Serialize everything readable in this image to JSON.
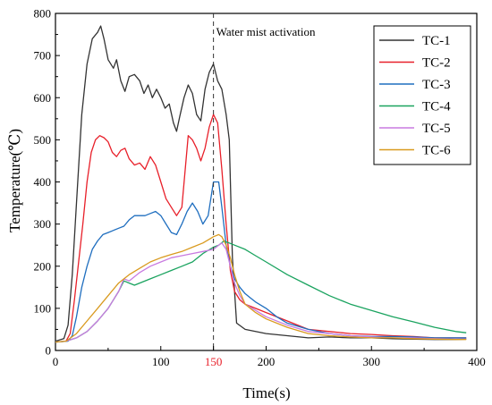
{
  "chart_data": {
    "type": "line",
    "xlabel": "Time(s)",
    "ylabel": "Temperature(℃)",
    "xlim": [
      0,
      400
    ],
    "ylim": [
      0,
      800
    ],
    "xticks": [
      0,
      100,
      200,
      300,
      400
    ],
    "yticks": [
      0,
      100,
      200,
      300,
      400,
      500,
      600,
      700,
      800
    ],
    "highlight_tick": {
      "value": 150,
      "label": "150",
      "color": "#e8202a"
    },
    "grid": false,
    "legend": "top-right",
    "annotation": {
      "x": 150,
      "label": "Water mist activation"
    },
    "series": [
      {
        "name": "TC-1",
        "color": "#333333",
        "x": [
          0,
          8,
          12,
          16,
          20,
          25,
          30,
          35,
          40,
          43,
          46,
          50,
          55,
          58,
          62,
          66,
          70,
          75,
          80,
          84,
          88,
          92,
          96,
          100,
          104,
          108,
          112,
          115,
          118,
          122,
          126,
          130,
          134,
          138,
          142,
          146,
          150,
          154,
          158,
          162,
          165,
          168,
          172,
          180,
          190,
          200,
          220,
          240,
          260,
          280,
          300,
          320,
          340,
          360,
          380,
          390
        ],
        "y": [
          22,
          28,
          60,
          180,
          350,
          560,
          680,
          740,
          755,
          770,
          740,
          690,
          670,
          690,
          640,
          615,
          650,
          655,
          640,
          610,
          630,
          600,
          620,
          600,
          575,
          585,
          540,
          520,
          555,
          600,
          630,
          610,
          560,
          545,
          620,
          660,
          680,
          640,
          620,
          560,
          500,
          220,
          65,
          50,
          45,
          40,
          35,
          30,
          32,
          30,
          30,
          28,
          27,
          26,
          26,
          27
        ]
      },
      {
        "name": "TC-2",
        "color": "#e8202a",
        "x": [
          0,
          10,
          14,
          18,
          22,
          26,
          30,
          34,
          38,
          42,
          46,
          50,
          54,
          58,
          62,
          66,
          70,
          75,
          80,
          85,
          90,
          95,
          100,
          105,
          110,
          115,
          120,
          126,
          130,
          134,
          138,
          142,
          146,
          150,
          154,
          158,
          162,
          166,
          170,
          175,
          180,
          190,
          200,
          220,
          240,
          260,
          280,
          300,
          320,
          340,
          360,
          380,
          390
        ],
        "y": [
          20,
          22,
          40,
          120,
          210,
          300,
          400,
          470,
          500,
          510,
          505,
          495,
          470,
          460,
          475,
          480,
          455,
          440,
          445,
          430,
          460,
          440,
          400,
          360,
          340,
          320,
          340,
          510,
          500,
          480,
          450,
          480,
          530,
          560,
          540,
          430,
          300,
          190,
          140,
          120,
          110,
          100,
          90,
          70,
          50,
          45,
          40,
          38,
          35,
          33,
          30,
          30,
          30
        ],
        "ylabels": [
          {
            "x": 130,
            "y": 200,
            "label": ""
          }
        ]
      },
      {
        "name": "TC-3",
        "color": "#1f6ebf",
        "x": [
          0,
          12,
          16,
          20,
          25,
          30,
          35,
          40,
          45,
          50,
          55,
          60,
          65,
          70,
          75,
          80,
          85,
          90,
          95,
          100,
          105,
          110,
          115,
          120,
          125,
          130,
          135,
          140,
          145,
          150,
          155,
          158,
          162,
          166,
          170,
          175,
          180,
          185,
          190,
          200,
          210,
          220,
          240,
          260,
          280,
          300,
          320,
          340,
          360,
          380,
          390
        ],
        "y": [
          20,
          22,
          35,
          80,
          150,
          200,
          240,
          260,
          275,
          280,
          285,
          290,
          295,
          310,
          320,
          320,
          320,
          325,
          330,
          320,
          300,
          280,
          275,
          300,
          330,
          350,
          330,
          300,
          320,
          400,
          400,
          340,
          250,
          200,
          170,
          150,
          135,
          125,
          115,
          100,
          80,
          65,
          50,
          40,
          35,
          33,
          33,
          32,
          30,
          30,
          30
        ]
      },
      {
        "name": "TC-4",
        "color": "#1aa35f",
        "x": [
          0,
          10,
          20,
          30,
          40,
          50,
          60,
          65,
          70,
          75,
          80,
          90,
          100,
          110,
          120,
          130,
          140,
          150,
          155,
          160,
          165,
          170,
          180,
          190,
          200,
          220,
          240,
          260,
          280,
          300,
          320,
          340,
          360,
          380,
          390
        ],
        "y": [
          20,
          22,
          30,
          45,
          70,
          100,
          140,
          165,
          160,
          155,
          160,
          170,
          180,
          190,
          200,
          210,
          230,
          245,
          250,
          260,
          255,
          250,
          240,
          225,
          210,
          180,
          155,
          130,
          110,
          95,
          80,
          68,
          55,
          45,
          42
        ]
      },
      {
        "name": "TC-5",
        "color": "#c87ae0",
        "x": [
          0,
          10,
          20,
          30,
          40,
          50,
          60,
          65,
          70,
          75,
          80,
          90,
          100,
          110,
          120,
          130,
          140,
          150,
          155,
          158,
          162,
          166,
          170,
          175,
          180,
          190,
          200,
          220,
          240,
          260,
          280,
          300,
          320,
          340,
          360,
          380,
          390
        ],
        "y": [
          20,
          22,
          30,
          45,
          70,
          100,
          140,
          170,
          165,
          175,
          185,
          200,
          210,
          220,
          225,
          230,
          235,
          240,
          250,
          255,
          240,
          200,
          160,
          130,
          110,
          95,
          80,
          60,
          45,
          40,
          35,
          32,
          30,
          30,
          28,
          27,
          27
        ]
      },
      {
        "name": "TC-6",
        "color": "#d99a1e",
        "x": [
          0,
          10,
          20,
          30,
          40,
          50,
          60,
          70,
          80,
          90,
          100,
          110,
          120,
          130,
          140,
          150,
          155,
          158,
          162,
          166,
          170,
          175,
          180,
          190,
          200,
          220,
          240,
          260,
          280,
          300,
          320,
          340,
          360,
          380,
          390
        ],
        "y": [
          20,
          22,
          40,
          70,
          100,
          130,
          160,
          180,
          195,
          210,
          220,
          228,
          235,
          245,
          255,
          270,
          275,
          270,
          250,
          220,
          180,
          140,
          110,
          90,
          75,
          55,
          40,
          35,
          32,
          30,
          30,
          28,
          27,
          26,
          26
        ]
      }
    ]
  }
}
